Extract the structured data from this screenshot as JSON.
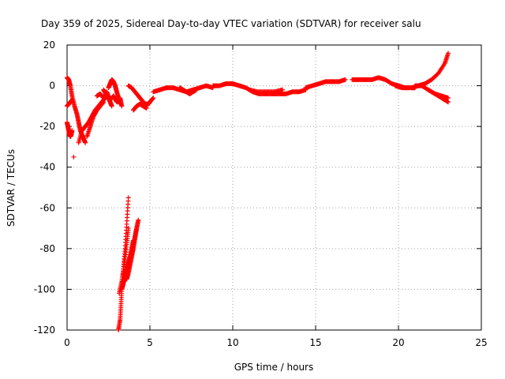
{
  "chart_data": {
    "type": "scatter",
    "title": "Day 359 of 2025, Sidereal Day-to-day VTEC variation (SDTVAR) for receiver salu",
    "xlabel": "GPS time / hours",
    "ylabel": "SDTVAR / TECUs",
    "xlim": [
      0,
      25
    ],
    "ylim": [
      -120,
      20
    ],
    "xticks": [
      0,
      5,
      10,
      15,
      20,
      25
    ],
    "yticks": [
      -120,
      -100,
      -80,
      -60,
      -40,
      -20,
      0,
      20
    ],
    "grid": true,
    "marker": "+",
    "colors": {
      "series": "#ff0000",
      "axes": "#000000",
      "grid": "#a0a0a0"
    },
    "series": [
      {
        "name": "SDTVAR",
        "segments": [
          {
            "x": [
              0.0,
              0.1,
              0.2,
              0.3,
              0.45,
              0.6,
              0.7,
              0.8,
              0.95,
              1.1
            ],
            "y": [
              4,
              3,
              0,
              -5,
              -10,
              -14,
              -18,
              -22,
              -25,
              -28
            ]
          },
          {
            "x": [
              0.0,
              0.05,
              0.1,
              0.15,
              0.2,
              0.25,
              0.3
            ],
            "y": [
              -18,
              -20,
              -22,
              -24,
              -25,
              -24,
              -22
            ]
          },
          {
            "x": [
              0.0,
              0.1,
              0.2,
              0.3
            ],
            "y": [
              -10,
              -9,
              -8,
              -7
            ]
          },
          {
            "x": [
              0.4
            ],
            "y": [
              -35
            ]
          },
          {
            "x": [
              0.7,
              0.9,
              1.1,
              1.3,
              1.5,
              1.7,
              1.9,
              2.1,
              2.3
            ],
            "y": [
              -28,
              -22,
              -20,
              -18,
              -15,
              -12,
              -10,
              -8,
              -6
            ]
          },
          {
            "x": [
              1.2,
              1.4,
              1.6,
              1.8,
              2.0,
              2.2
            ],
            "y": [
              -25,
              -20,
              -15,
              -12,
              -10,
              -8
            ]
          },
          {
            "x": [
              1.8,
              2.0,
              2.2,
              2.4,
              2.6,
              2.8,
              3.0,
              3.2,
              3.3
            ],
            "y": [
              -5,
              -4,
              -6,
              -3,
              -7,
              -5,
              -8,
              -6,
              -10
            ]
          },
          {
            "x": [
              2.2,
              2.35,
              2.5,
              2.6,
              2.7
            ],
            "y": [
              -2,
              -4,
              -6,
              -8,
              -10
            ]
          },
          {
            "x": [
              2.5,
              2.6,
              2.7,
              2.8,
              2.9,
              3.0,
              3.1,
              3.2
            ],
            "y": [
              -1,
              1,
              3,
              2,
              0,
              -3,
              -6,
              -9
            ]
          },
          {
            "x": [
              3.7,
              3.9,
              4.1,
              4.3,
              4.5,
              4.7,
              4.9,
              5.0,
              5.2
            ],
            "y": [
              0,
              -1,
              -3,
              -5,
              -7,
              -9,
              -9,
              -8,
              -6
            ]
          },
          {
            "x": [
              4.0,
              4.2,
              4.4,
              4.6,
              4.8
            ],
            "y": [
              -12,
              -10,
              -9,
              -10,
              -11
            ]
          },
          {
            "x": [
              5.2,
              5.6,
              6.0,
              6.4,
              6.8,
              7.2,
              7.6,
              8.0,
              8.4,
              8.8
            ],
            "y": [
              -3,
              -2,
              -1,
              -1,
              -2,
              -3,
              -2,
              -1,
              0,
              -1
            ]
          },
          {
            "x": [
              6.8,
              7.0,
              7.2,
              7.4,
              7.6,
              7.8
            ],
            "y": [
              -1,
              -2,
              -3,
              -4,
              -3,
              -2
            ]
          },
          {
            "x": [
              8.8,
              9.2,
              9.6,
              10.0,
              10.4,
              10.8,
              11.2,
              11.6,
              12.0,
              12.4,
              12.8,
              13.2,
              13.6,
              14.0,
              14.4
            ],
            "y": [
              0,
              0,
              1,
              1,
              0,
              -1,
              -3,
              -4,
              -4,
              -4,
              -4,
              -4,
              -3,
              -3,
              -2
            ]
          },
          {
            "x": [
              11.0,
              11.5,
              12.0,
              12.5,
              13.0
            ],
            "y": [
              -2,
              -3,
              -3,
              -3,
              -2
            ]
          },
          {
            "x": [
              14.4,
              14.8,
              15.2,
              15.6,
              16.0,
              16.4,
              16.8
            ],
            "y": [
              -1,
              0,
              1,
              2,
              2,
              2,
              3
            ]
          },
          {
            "x": [
              17.2,
              17.6,
              18.0,
              18.4,
              18.8,
              19.2,
              19.6,
              20.0,
              20.4,
              20.8,
              21.0
            ],
            "y": [
              3,
              3,
              3,
              3,
              4,
              3,
              1,
              0,
              -1,
              -1,
              -1
            ]
          },
          {
            "x": [
              19.8,
              20.2,
              20.6
            ],
            "y": [
              0,
              -1,
              -1
            ]
          },
          {
            "x": [
              20.8,
              21.2,
              21.6,
              22.0,
              22.4,
              22.8,
              23.0
            ],
            "y": [
              -1,
              0,
              1,
              3,
              6,
              11,
              16
            ]
          },
          {
            "x": [
              21.0,
              21.4,
              21.8,
              22.2,
              22.6,
              23.0
            ],
            "y": [
              0,
              0,
              -2,
              -4,
              -6,
              -8
            ]
          },
          {
            "x": [
              21.8,
              22.2,
              22.6,
              23.0
            ],
            "y": [
              -2,
              -4,
              -5,
              -6
            ]
          },
          {
            "x": [
              3.1,
              3.2,
              3.25,
              3.3,
              3.4,
              3.5,
              3.6,
              3.7
            ],
            "y": [
              -120,
              -115,
              -108,
              -100,
              -90,
              -80,
              -68,
              -55
            ]
          },
          {
            "x": [
              3.15,
              3.3,
              3.45,
              3.6,
              3.7
            ],
            "y": [
              -102,
              -96,
              -88,
              -78,
              -70
            ]
          },
          {
            "x": [
              3.3,
              3.4,
              3.5,
              3.6,
              3.7,
              3.8,
              3.9,
              4.0,
              4.1,
              4.2,
              4.3
            ],
            "y": [
              -100,
              -97,
              -94,
              -91,
              -88,
              -85,
              -82,
              -78,
              -74,
              -70,
              -66
            ]
          },
          {
            "x": [
              3.4,
              3.5,
              3.6,
              3.7,
              3.8,
              3.9,
              4.0
            ],
            "y": [
              -96,
              -93,
              -90,
              -87,
              -84,
              -80,
              -76
            ]
          },
          {
            "x": [
              3.6,
              3.7,
              3.8,
              3.9,
              4.0,
              4.1,
              4.2
            ],
            "y": [
              -95,
              -92,
              -88,
              -84,
              -80,
              -75,
              -70
            ]
          }
        ]
      }
    ]
  }
}
